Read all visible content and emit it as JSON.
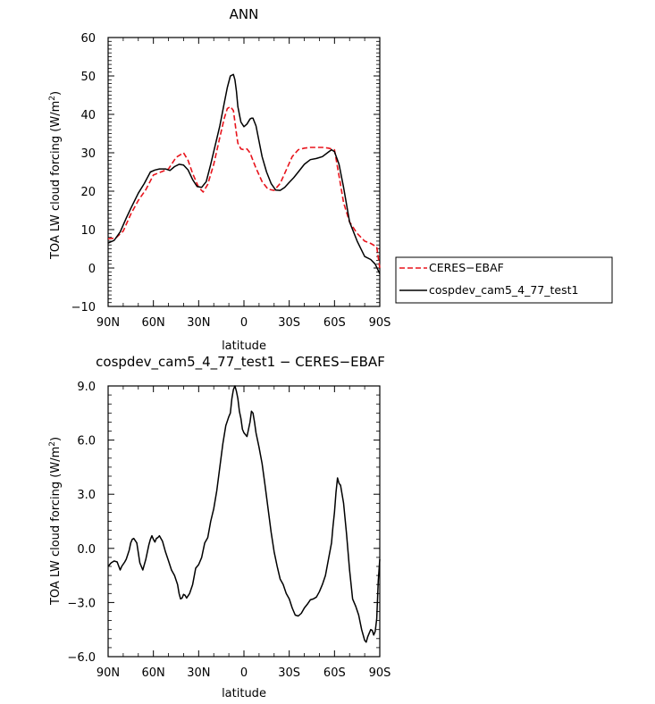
{
  "chart_data": [
    {
      "type": "line",
      "title": "ANN",
      "xlabel": "latitude",
      "ylabel": "TOA LW cloud forcing (W/m²)",
      "xlim": [
        -90,
        90
      ],
      "ylim": [
        -10,
        60
      ],
      "x_ticks": [
        -90,
        -60,
        -30,
        0,
        30,
        60,
        90
      ],
      "x_tick_labels": [
        "90N",
        "60N",
        "30N",
        "0",
        "30S",
        "60S",
        "90S"
      ],
      "y_ticks": [
        -10,
        0,
        10,
        20,
        30,
        40,
        50,
        60
      ],
      "y_tick_labels": [
        "−10",
        "0",
        "10",
        "20",
        "30",
        "40",
        "50",
        "60"
      ],
      "grid": false,
      "legend": "right",
      "series": [
        {
          "name": "CERES−EBAF",
          "color": "#e8141c",
          "dash": "dashed",
          "x": [
            -90,
            -85,
            -80,
            -75,
            -70,
            -65,
            -60,
            -55,
            -50,
            -45,
            -40,
            -37,
            -34,
            -30,
            -27,
            -24,
            -20,
            -16,
            -13,
            -11,
            -9,
            -7,
            -6,
            -5,
            -4,
            -2,
            0,
            2,
            4,
            6,
            8,
            12,
            16,
            20,
            24,
            28,
            32,
            36,
            40,
            44,
            48,
            52,
            56,
            60,
            63,
            66,
            70,
            75,
            80,
            84,
            88,
            90
          ],
          "values": [
            7.6,
            7.8,
            9.6,
            14.0,
            17.6,
            20.4,
            24.2,
            25.0,
            25.8,
            28.8,
            30.0,
            28.0,
            24.6,
            21.0,
            19.8,
            21.8,
            27.0,
            34.0,
            39.0,
            41.5,
            42.0,
            41.0,
            38.0,
            35.0,
            32.5,
            31.0,
            30.8,
            31.0,
            30.0,
            28.0,
            26.0,
            22.5,
            20.5,
            20.2,
            22.0,
            25.5,
            29.0,
            30.8,
            31.2,
            31.4,
            31.4,
            31.4,
            31.2,
            30.8,
            24.0,
            17.0,
            12.0,
            9.0,
            7.0,
            6.4,
            5.5,
            0.0
          ]
        },
        {
          "name": "cospdev_cam5_4_77_test1",
          "color": "#000000",
          "dash": "solid",
          "x": [
            -90,
            -86,
            -82,
            -78,
            -75,
            -70,
            -66,
            -62,
            -59,
            -56,
            -52,
            -49,
            -46,
            -43,
            -40,
            -37,
            -34,
            -31,
            -28,
            -25,
            -22,
            -19,
            -16,
            -13,
            -11,
            -9,
            -7,
            -6,
            -5,
            -4,
            -2,
            0,
            2,
            4,
            5,
            6,
            8,
            10,
            12,
            15,
            18,
            21,
            24,
            27,
            30,
            33,
            36,
            40,
            44,
            48,
            52,
            56,
            58,
            60,
            63,
            66,
            70,
            75,
            80,
            84,
            87,
            90
          ],
          "values": [
            6.5,
            7.2,
            9.4,
            13.0,
            15.5,
            19.5,
            22.0,
            25.0,
            25.5,
            25.8,
            25.8,
            25.4,
            26.4,
            27.0,
            26.8,
            25.5,
            23.0,
            21.2,
            21.0,
            22.5,
            27.0,
            32.0,
            37.0,
            43.0,
            47.0,
            50.0,
            50.4,
            49.0,
            46.0,
            42.0,
            38.0,
            36.8,
            37.5,
            38.8,
            39.0,
            39.0,
            37.0,
            33.0,
            29.0,
            25.0,
            22.0,
            20.3,
            20.2,
            21.0,
            22.3,
            23.5,
            25.0,
            27.0,
            28.2,
            28.5,
            29.0,
            30.2,
            30.8,
            30.3,
            27.0,
            21.0,
            12.0,
            7.0,
            3.0,
            2.2,
            1.0,
            -1.5
          ]
        }
      ]
    },
    {
      "type": "line",
      "title": "cospdev_cam5_4_77_test1 − CERES−EBAF",
      "xlabel": "latitude",
      "ylabel": "TOA LW cloud forcing (W/m²)",
      "xlim": [
        -90,
        90
      ],
      "ylim": [
        -6,
        9
      ],
      "x_ticks": [
        -90,
        -60,
        -30,
        0,
        30,
        60,
        90
      ],
      "x_tick_labels": [
        "90N",
        "60N",
        "30N",
        "0",
        "30S",
        "60S",
        "90S"
      ],
      "y_ticks": [
        -6,
        -3,
        0,
        3,
        6,
        9
      ],
      "y_tick_labels": [
        "−6.0",
        "−3.0",
        "0.0",
        "3.0",
        "6.0",
        "9.0"
      ],
      "grid": false,
      "series": [
        {
          "color": "#000000",
          "dash": "solid",
          "x": [
            -90,
            -88,
            -86,
            -84,
            -82,
            -81,
            -79,
            -78,
            -76,
            -75,
            -74,
            -73,
            -71,
            -69,
            -67,
            -65,
            -63,
            -62,
            -61,
            -60,
            -59,
            -58,
            -57,
            -56,
            -54,
            -52,
            -50,
            -48,
            -46,
            -44,
            -43,
            -42,
            -41,
            -40,
            -39,
            -38,
            -36,
            -34,
            -32,
            -30,
            -28,
            -26,
            -24,
            -22,
            -20,
            -18,
            -16,
            -14,
            -12,
            -10,
            -9,
            -8,
            -7,
            -6,
            -5,
            -4,
            -3,
            -2,
            -1,
            0,
            1,
            2,
            3,
            4,
            5,
            6,
            7,
            8,
            10,
            12,
            14,
            16,
            18,
            20,
            22,
            24,
            26,
            28,
            30,
            32,
            34,
            36,
            38,
            40,
            42,
            44,
            46,
            48,
            50,
            52,
            54,
            56,
            58,
            59,
            60,
            61,
            62,
            63,
            64,
            66,
            68,
            70,
            72,
            74,
            76,
            78,
            80,
            81,
            82,
            83,
            84,
            85,
            86,
            87,
            88,
            89,
            90
          ],
          "values": [
            -1.0,
            -0.8,
            -0.7,
            -0.75,
            -1.2,
            -1.0,
            -0.75,
            -0.6,
            -0.1,
            0.3,
            0.5,
            0.55,
            0.3,
            -0.8,
            -1.2,
            -0.6,
            0.2,
            0.5,
            0.7,
            0.5,
            0.35,
            0.55,
            0.6,
            0.7,
            0.4,
            -0.2,
            -0.7,
            -1.2,
            -1.5,
            -2.0,
            -2.5,
            -2.8,
            -2.75,
            -2.55,
            -2.6,
            -2.75,
            -2.5,
            -2.0,
            -1.1,
            -0.9,
            -0.5,
            0.3,
            0.6,
            1.5,
            2.2,
            3.2,
            4.5,
            5.8,
            6.8,
            7.3,
            7.5,
            8.3,
            8.8,
            9.0,
            8.7,
            8.3,
            7.6,
            7.2,
            6.6,
            6.4,
            6.3,
            6.2,
            6.6,
            7.0,
            7.6,
            7.5,
            7.0,
            6.4,
            5.6,
            4.7,
            3.5,
            2.2,
            0.9,
            -0.2,
            -1.0,
            -1.7,
            -2.0,
            -2.5,
            -2.8,
            -3.3,
            -3.7,
            -3.75,
            -3.6,
            -3.3,
            -3.1,
            -2.85,
            -2.8,
            -2.7,
            -2.4,
            -2.0,
            -1.5,
            -0.6,
            0.3,
            1.2,
            2.0,
            3.1,
            3.9,
            3.6,
            3.5,
            2.5,
            0.8,
            -1.2,
            -2.8,
            -3.2,
            -3.7,
            -4.5,
            -5.1,
            -5.2,
            -4.9,
            -4.7,
            -4.5,
            -4.55,
            -4.8,
            -4.6,
            -3.9,
            -1.8,
            -0.6
          ]
        }
      ]
    }
  ]
}
